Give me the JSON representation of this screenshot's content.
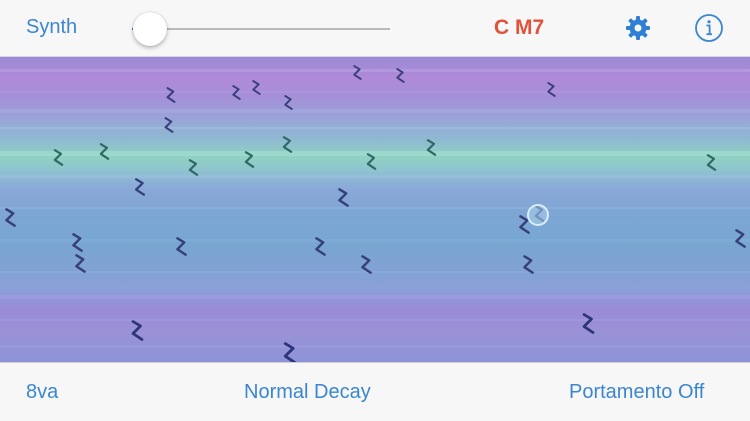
{
  "header": {
    "synth_label": "Synth",
    "slider_value": 0.07,
    "chord_label": "C M7",
    "settings_icon": "gear-icon",
    "info_icon": "info-icon"
  },
  "footer": {
    "octave_label": "8va",
    "decay_label": "Normal Decay",
    "portamento_label": "Portamento Off"
  },
  "colors": {
    "accent": "#3a86d0",
    "chord": "#e0523b",
    "purple": "#9c86d8",
    "teal": "#8fd0c0",
    "blue": "#7fa8d6"
  }
}
